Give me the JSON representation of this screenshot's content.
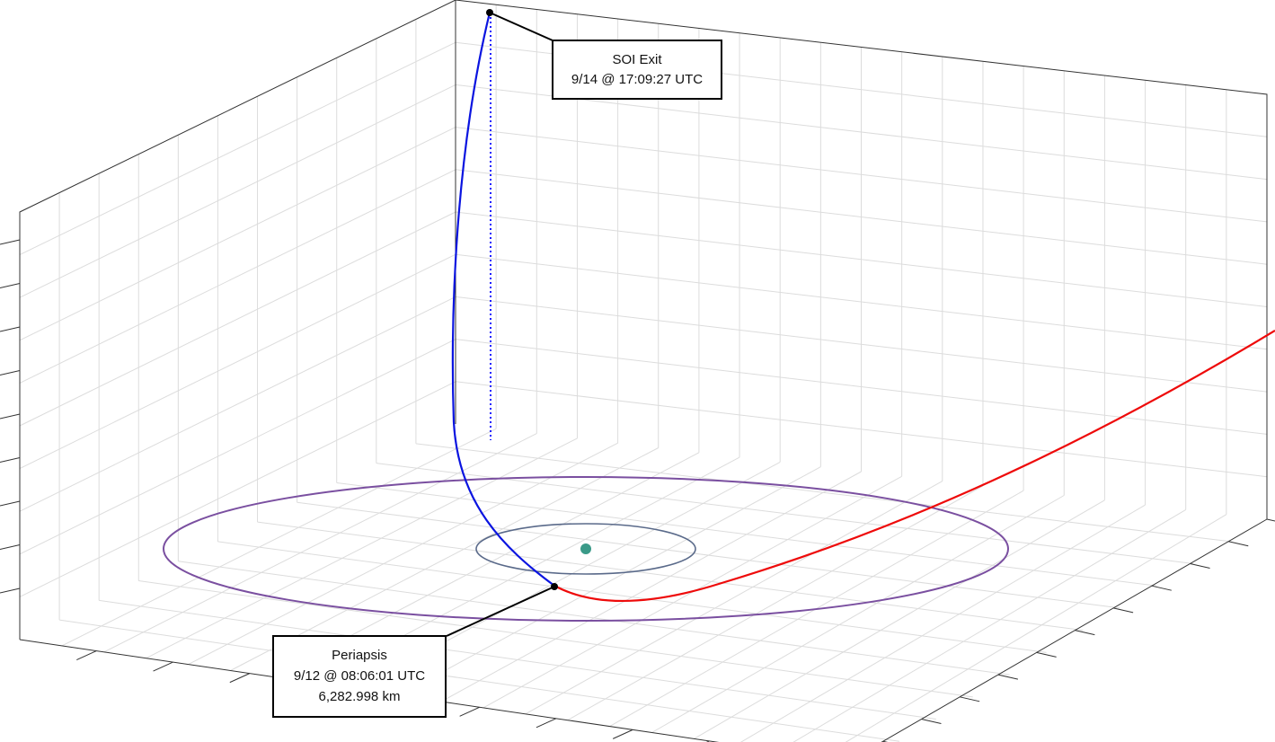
{
  "annotations": [
    {
      "lines": [
        "SOI Exit",
        "9/14 @ 17:09:27 UTC"
      ]
    },
    {
      "lines": [
        "Periapsis",
        "9/12 @ 08:06:01 UTC",
        "6,282.998 km"
      ]
    }
  ]
}
